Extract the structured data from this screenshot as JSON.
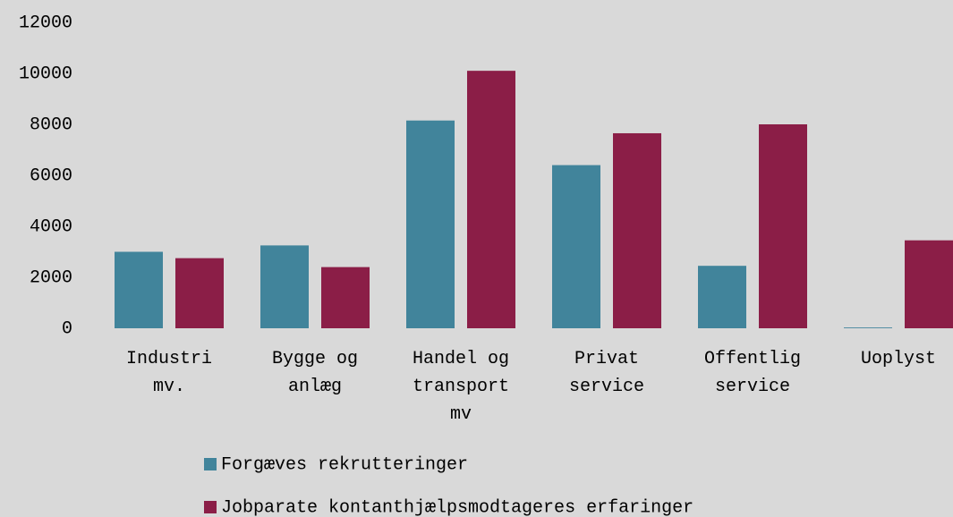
{
  "chart_data": {
    "type": "bar",
    "categories": [
      "Industri mv.",
      "Bygge og anlæg",
      "Handel og transport mv",
      "Privat service",
      "Offentlig service",
      "Uoplyst"
    ],
    "series": [
      {
        "name": "Forgæves rekrutteringer",
        "color": "#41849b",
        "values": [
          3000,
          3250,
          8150,
          6400,
          2450,
          30
        ]
      },
      {
        "name": "Jobparate kontanthjælpsmodtageres erfaringer",
        "color": "#8b1e47",
        "values": [
          2750,
          2400,
          10100,
          7650,
          8000,
          3450
        ]
      }
    ],
    "ylim": [
      0,
      12000
    ],
    "yticks": [
      0,
      2000,
      4000,
      6000,
      8000,
      10000,
      12000
    ],
    "grid": false,
    "legend": "bottom"
  }
}
